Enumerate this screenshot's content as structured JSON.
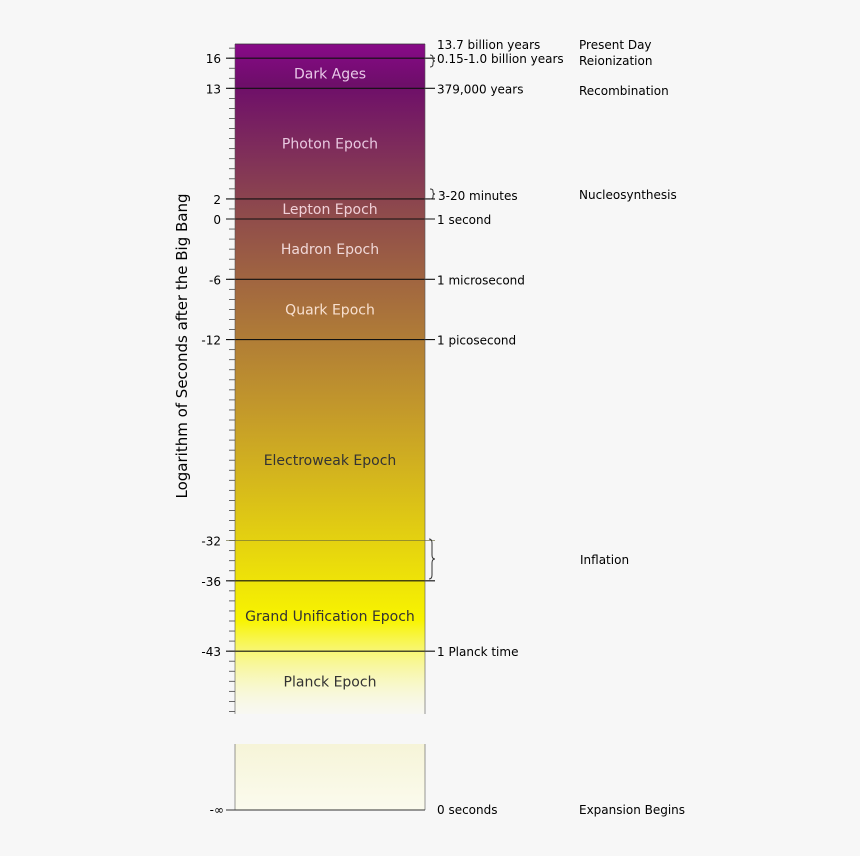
{
  "axis": {
    "title": "Logarithm of Seconds after the Big Bang",
    "ticks": [
      {
        "v": 16,
        "label": "16"
      },
      {
        "v": 13,
        "label": "13"
      },
      {
        "v": 2,
        "label": "2"
      },
      {
        "v": 0,
        "label": "0"
      },
      {
        "v": -6,
        "label": "-6"
      },
      {
        "v": -12,
        "label": "-12"
      },
      {
        "v": -32,
        "label": "-32"
      },
      {
        "v": -36,
        "label": "-36"
      },
      {
        "v": -43,
        "label": "-43"
      }
    ],
    "bottom_label": "-∞"
  },
  "epochs": [
    {
      "id": "dark-ages",
      "label": "Dark Ages",
      "from": 16,
      "to": 13,
      "color": "#e8c8e8"
    },
    {
      "id": "photon",
      "label": "Photon Epoch",
      "from": 13,
      "to": 2,
      "color": "#e8c8e0"
    },
    {
      "id": "lepton",
      "label": "Lepton Epoch",
      "from": 2,
      "to": 0,
      "color": "#f0d0d8"
    },
    {
      "id": "hadron",
      "label": "Hadron Epoch",
      "from": 0,
      "to": -6,
      "color": "#f0d8d8"
    },
    {
      "id": "quark",
      "label": "Quark Epoch",
      "from": -6,
      "to": -12,
      "color": "#f8e0d0"
    },
    {
      "id": "electroweak",
      "label": "Electroweak Epoch",
      "from": -12,
      "to": -36,
      "color": "#333333"
    },
    {
      "id": "grand-unification",
      "label": "Grand Unification Epoch",
      "from": -36,
      "to": -43,
      "color": "#333333"
    },
    {
      "id": "planck",
      "label": "Planck Epoch",
      "from": -43,
      "to": -49,
      "color": "#333333"
    }
  ],
  "boundaries": [
    {
      "v": 16,
      "label": "0.15-1.0 billion years",
      "bold": true
    },
    {
      "v": 13,
      "label": "379,000 years",
      "bold": true
    },
    {
      "v": 2,
      "label": "",
      "bold": true
    },
    {
      "v": 0,
      "label": "1 second",
      "bold": true
    },
    {
      "v": -6,
      "label": "1 microsecond",
      "bold": true
    },
    {
      "v": -12,
      "label": "1 picosecond",
      "bold": true
    },
    {
      "v": -32,
      "label": "",
      "bold": false
    },
    {
      "v": -36,
      "label": "",
      "bold": true
    },
    {
      "v": -43,
      "label": "1 Planck time",
      "bold": true
    }
  ],
  "top_time": "13.7 billion years",
  "nucleosynthesis_time": "3-20 minutes",
  "zero_time": "0 seconds",
  "events": [
    {
      "id": "present",
      "label": "Present Day"
    },
    {
      "id": "reionization",
      "label": "Reionization"
    },
    {
      "id": "recombination",
      "label": "Recombination"
    },
    {
      "id": "nucleosynthesis",
      "label": "Nucleosynthesis"
    },
    {
      "id": "inflation",
      "label": "Inflation"
    },
    {
      "id": "expansion",
      "label": "Expansion Begins",
      "color": "#555555"
    }
  ],
  "gradient_colors": {
    "top": "#880a88",
    "upper": "#6e0e6a",
    "mid": "#8e4a4c",
    "lower": "#c49a2a",
    "yellow": "#f8f400",
    "fade": "#fafae8"
  }
}
